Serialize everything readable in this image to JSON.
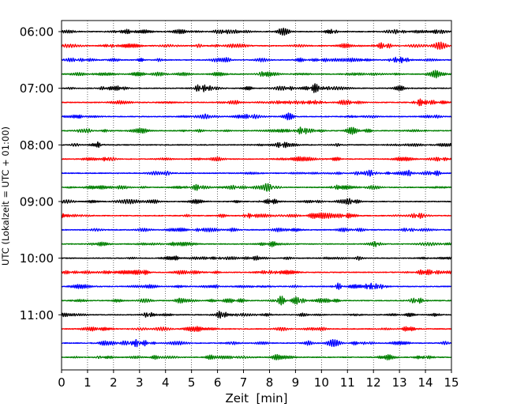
{
  "chart_data": {
    "type": "line",
    "xlabel": "Zeit  [min]",
    "ylabel": "UTC (Lokalzeit = UTC + 01:00)",
    "xlim": [
      0,
      15
    ],
    "x_ticks": [
      0,
      1,
      2,
      3,
      4,
      5,
      6,
      7,
      8,
      9,
      10,
      11,
      12,
      13,
      14,
      15
    ],
    "x_tick_labels": [
      "0",
      "1",
      "2",
      "3",
      "4",
      "5",
      "6",
      "7",
      "8",
      "9",
      "10",
      "11",
      "12",
      "13",
      "14",
      "15"
    ],
    "y_ticks": [
      "06:00",
      "07:00",
      "08:00",
      "09:00",
      "10:00",
      "11:00"
    ],
    "grid": "vertical dotted at each minute",
    "trace_minutes": 15,
    "trace_count": 24,
    "trace_start_times": [
      "06:00",
      "06:15",
      "06:30",
      "06:45",
      "07:00",
      "07:15",
      "07:30",
      "07:45",
      "08:00",
      "08:15",
      "08:30",
      "08:45",
      "09:00",
      "09:15",
      "09:30",
      "09:45",
      "10:00",
      "10:15",
      "10:30",
      "10:45",
      "11:00",
      "11:15",
      "11:30",
      "11:45"
    ],
    "colors": [
      "#000000",
      "#ff0000",
      "#0000ff",
      "#008000"
    ]
  }
}
